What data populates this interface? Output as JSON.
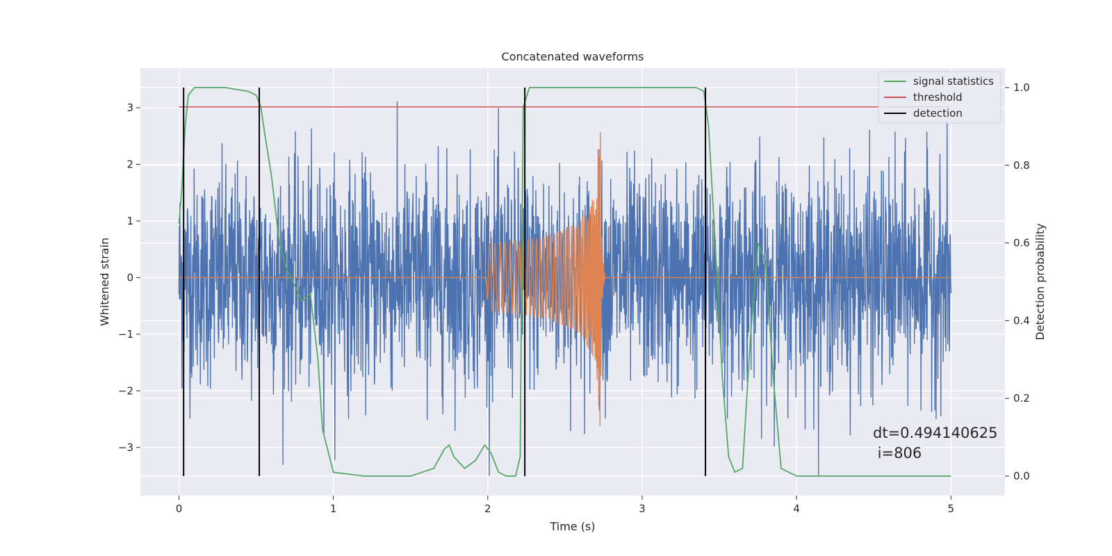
{
  "chart_data": {
    "type": "line",
    "title": "Concatenated waveforms",
    "xlabel": "Time (s)",
    "ylabel": "Whitened strain",
    "y2label": "Detection probability",
    "xlim": [
      -0.25,
      5.35
    ],
    "ylim": [
      -3.85,
      3.7
    ],
    "y2lim": [
      -0.05,
      1.05
    ],
    "x_ticks": [
      0,
      1,
      2,
      3,
      4,
      5
    ],
    "y_ticks": [
      -3,
      -2,
      -1,
      0,
      1,
      2,
      3
    ],
    "y2_ticks": [
      0.0,
      0.2,
      0.4,
      0.6,
      0.8,
      1.0
    ],
    "x_tick_labels": [
      "0",
      "1",
      "2",
      "3",
      "4",
      "5"
    ],
    "y_tick_labels": [
      "−3",
      "−2",
      "−1",
      "0",
      "1",
      "2",
      "3"
    ],
    "y2_tick_labels": [
      "0.0",
      "0.2",
      "0.4",
      "0.6",
      "0.8",
      "1.0"
    ],
    "grid": true,
    "legend_placement": "top-right",
    "legend": [
      {
        "label": "signal statistics",
        "color": "#55a868"
      },
      {
        "label": "threshold",
        "color": "#c44e52"
      },
      {
        "label": "detection",
        "color": "#000000"
      }
    ],
    "series": [
      {
        "kind": "noise",
        "color": "#4c72b0",
        "x_range": [
          0,
          5
        ],
        "y_amplitude_approx": 3.0
      },
      {
        "kind": "chirp",
        "color": "#dd8452",
        "x": [
          0,
          1.99,
          2.0,
          2.2,
          2.4,
          2.6,
          2.7,
          2.73,
          2.74,
          2.76,
          5.0
        ],
        "envelope": [
          0,
          0,
          0.6,
          0.65,
          0.75,
          1.0,
          1.5,
          2.8,
          0.5,
          0,
          0
        ]
      },
      {
        "name": "signal statistics",
        "axis": "right",
        "color": "#55a868",
        "x": [
          0.0,
          0.02,
          0.04,
          0.06,
          0.1,
          0.15,
          0.3,
          0.45,
          0.5,
          0.53,
          0.56,
          0.6,
          0.65,
          0.7,
          0.75,
          0.8,
          0.85,
          0.9,
          0.93,
          1.0,
          1.2,
          1.5,
          1.65,
          1.72,
          1.75,
          1.78,
          1.85,
          1.92,
          1.98,
          2.02,
          2.07,
          2.12,
          2.18,
          2.21,
          2.22,
          2.23,
          2.27,
          2.35,
          3.35,
          3.4,
          3.43,
          3.47,
          3.52,
          3.56,
          3.6,
          3.65,
          3.7,
          3.75,
          3.8,
          3.85,
          3.9,
          4.0,
          5.0
        ],
        "y": [
          0.65,
          0.75,
          0.9,
          0.98,
          1.0,
          1.0,
          1.0,
          0.99,
          0.98,
          0.95,
          0.87,
          0.77,
          0.6,
          0.53,
          0.49,
          0.45,
          0.47,
          0.3,
          0.12,
          0.01,
          0.0,
          0.0,
          0.02,
          0.07,
          0.08,
          0.05,
          0.02,
          0.04,
          0.08,
          0.06,
          0.01,
          0.0,
          0.0,
          0.05,
          0.55,
          0.95,
          1.0,
          1.0,
          1.0,
          0.99,
          0.9,
          0.62,
          0.25,
          0.05,
          0.01,
          0.02,
          0.35,
          0.6,
          0.55,
          0.25,
          0.02,
          0.0,
          0.0
        ]
      },
      {
        "name": "threshold",
        "axis": "right",
        "color": "#c44e52",
        "x": [
          0,
          5
        ],
        "y": [
          0.95,
          0.95
        ]
      },
      {
        "name": "detection",
        "color": "#000000",
        "type": "vlines",
        "x": [
          0.03,
          0.52,
          2.24,
          3.41
        ]
      }
    ]
  },
  "annotation": {
    "dt": "dt=0.494140625",
    "i": " i=806"
  }
}
